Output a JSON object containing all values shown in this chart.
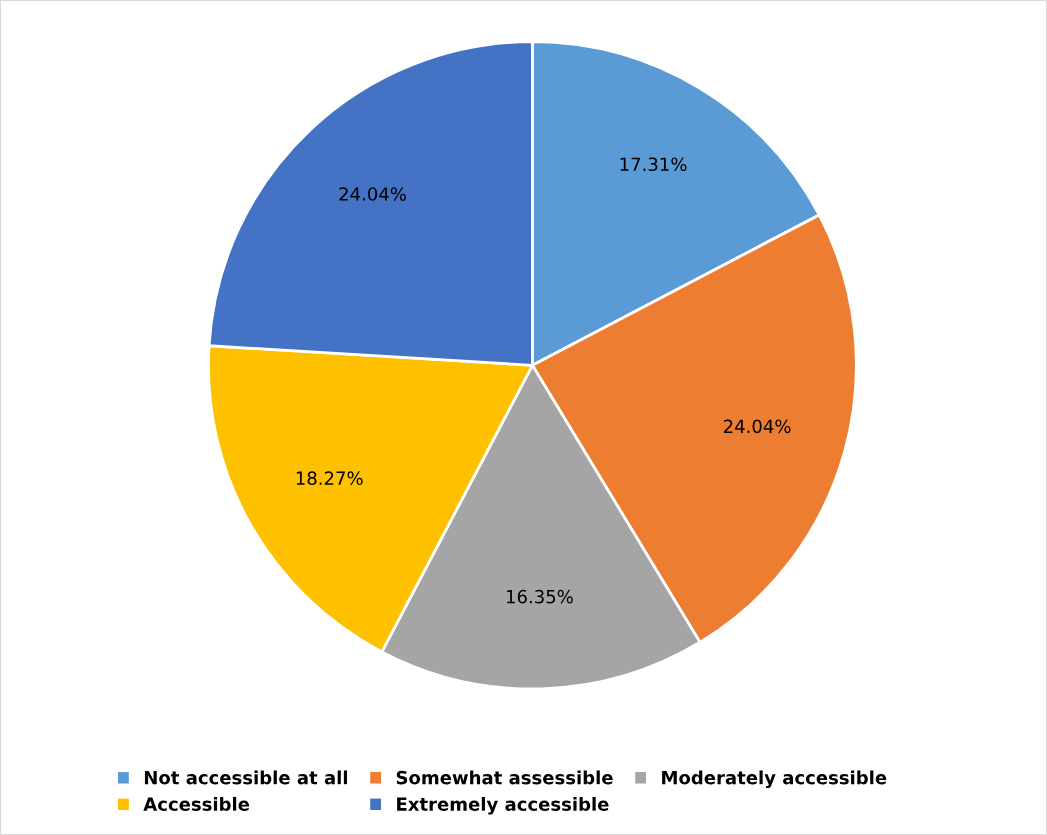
{
  "chart_data": {
    "type": "pie",
    "categories": [
      "Not accessible at all",
      "Somewhat assessible",
      "Moderately accessible",
      "Accessible",
      "Extremely accessible"
    ],
    "values": [
      17.31,
      24.04,
      16.35,
      18.27,
      24.04
    ],
    "colors": [
      "#5b9bd5",
      "#ed7d31",
      "#a5a5a5",
      "#ffc000",
      "#4472c4"
    ],
    "value_labels": [
      "17.31%",
      "24.04%",
      "16.35%",
      "18.27%",
      "24.04%"
    ],
    "legend": "bottom"
  }
}
